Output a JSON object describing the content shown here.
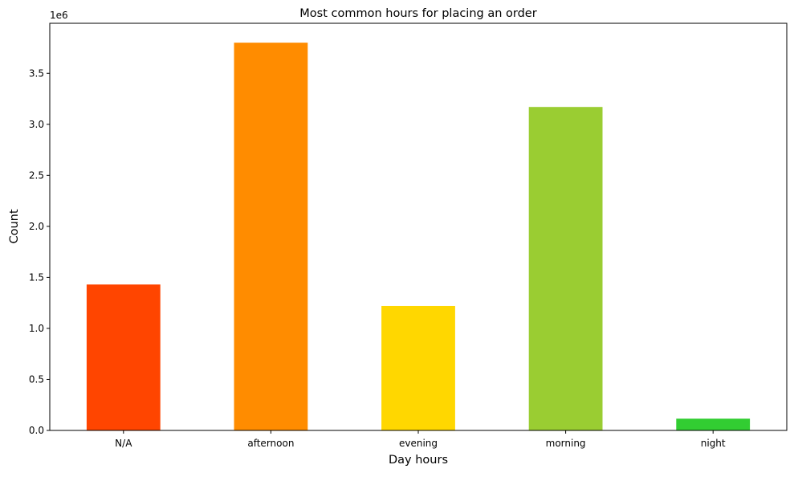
{
  "chart_data": {
    "type": "bar",
    "title": "Most common hours for placing an order",
    "xlabel": "Day hours",
    "ylabel": "Count",
    "y_offset_label": "1e6",
    "categories": [
      "N/A",
      "afternoon",
      "evening",
      "morning",
      "night"
    ],
    "values": [
      1430000,
      3800000,
      1220000,
      3170000,
      115000
    ],
    "colors": [
      "#FF4500",
      "#FF8C00",
      "#FFD700",
      "#9ACD32",
      "#32CD32"
    ],
    "ylim": [
      0,
      3990000
    ],
    "yticks": [
      0,
      500000,
      1000000,
      1500000,
      2000000,
      2500000,
      3000000,
      3500000
    ],
    "ytick_labels": [
      "0.0",
      "0.5",
      "1.0",
      "1.5",
      "2.0",
      "2.5",
      "3.0",
      "3.5"
    ],
    "grid": false,
    "legend": "none"
  }
}
